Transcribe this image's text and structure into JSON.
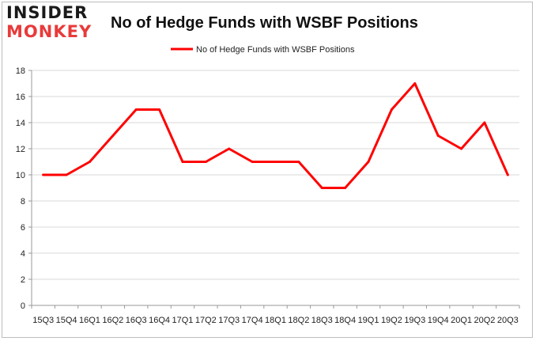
{
  "logo": {
    "line1": "INSIDER",
    "line2": "MONKEY"
  },
  "chart_data": {
    "type": "line",
    "title": "No of Hedge Funds with WSBF Positions",
    "categories": [
      "15Q3",
      "15Q4",
      "16Q1",
      "16Q2",
      "16Q3",
      "16Q4",
      "17Q1",
      "17Q2",
      "17Q3",
      "17Q4",
      "18Q1",
      "18Q2",
      "18Q3",
      "18Q4",
      "19Q1",
      "19Q2",
      "19Q3",
      "19Q4",
      "20Q1",
      "20Q2",
      "20Q3"
    ],
    "series": [
      {
        "name": "No of Hedge Funds with WSBF Positions",
        "values": [
          10,
          10,
          11,
          13,
          15,
          15,
          11,
          11,
          12,
          11,
          11,
          11,
          9,
          9,
          11,
          15,
          17,
          13,
          12,
          14,
          10
        ]
      }
    ],
    "yticks": [
      0,
      2,
      4,
      6,
      8,
      10,
      12,
      14,
      16,
      18
    ],
    "ylim": [
      0,
      18
    ],
    "grid": true,
    "legend_position": "top-center",
    "colors": {
      "line": "#ff0000",
      "grid": "#d9d9d9",
      "axis": "#999999"
    }
  }
}
